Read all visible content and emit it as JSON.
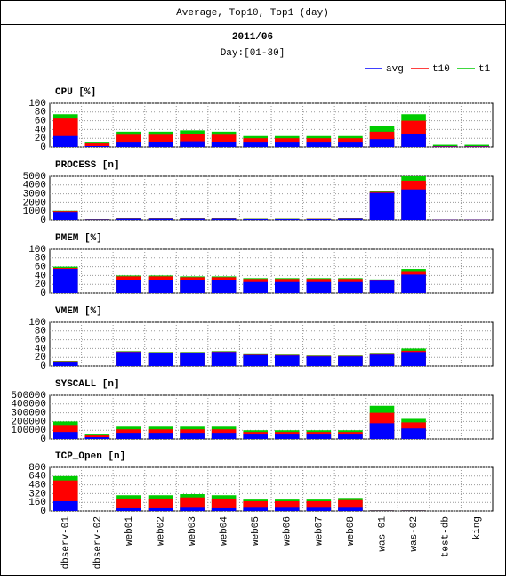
{
  "header": {
    "title": "Average, Top10, Top1 (day)",
    "date": "2011/06",
    "range": "Day:[01-30]"
  },
  "legend": [
    {
      "name": "avg",
      "color": "#0000ff"
    },
    {
      "name": "t10",
      "color": "#ff0000"
    },
    {
      "name": "t1",
      "color": "#00cc00"
    }
  ],
  "categories": [
    "dbserv-01",
    "dbserv-02",
    "web01",
    "web02",
    "web03",
    "web04",
    "web05",
    "web06",
    "web07",
    "web08",
    "was-01",
    "was-02",
    "test-db",
    "king"
  ],
  "chart_data": [
    {
      "type": "bar",
      "title": "CPU [%]",
      "ylim": [
        0,
        100
      ],
      "yticks": [
        0,
        20,
        40,
        60,
        80,
        100
      ],
      "grid": true,
      "series": [
        {
          "values": [
            25,
            2,
            10,
            12,
            13,
            12,
            10,
            10,
            10,
            10,
            18,
            30,
            1,
            1
          ]
        },
        {
          "values": [
            65,
            8,
            28,
            28,
            30,
            28,
            20,
            20,
            20,
            20,
            35,
            60,
            2,
            2
          ]
        },
        {
          "values": [
            75,
            10,
            35,
            35,
            38,
            35,
            25,
            25,
            25,
            25,
            48,
            75,
            5,
            5
          ]
        }
      ]
    },
    {
      "type": "bar",
      "title": "PROCESS [n]",
      "ylim": [
        0,
        5000
      ],
      "yticks": [
        0,
        1000,
        2000,
        3000,
        4000,
        5000
      ],
      "grid": true,
      "series": [
        {
          "values": [
            900,
            50,
            150,
            150,
            150,
            150,
            100,
            100,
            100,
            150,
            3100,
            3500,
            30,
            30
          ]
        },
        {
          "values": [
            1000,
            80,
            180,
            180,
            180,
            180,
            120,
            120,
            130,
            180,
            3200,
            4500,
            50,
            50
          ]
        },
        {
          "values": [
            1050,
            100,
            200,
            200,
            200,
            200,
            150,
            150,
            150,
            200,
            3300,
            5000,
            60,
            60
          ]
        }
      ]
    },
    {
      "type": "bar",
      "title": "PMEM [%]",
      "ylim": [
        0,
        100
      ],
      "yticks": [
        0,
        20,
        40,
        60,
        80,
        100
      ],
      "grid": true,
      "series": [
        {
          "values": [
            55,
            0,
            30,
            30,
            30,
            30,
            25,
            25,
            25,
            25,
            28,
            42,
            0,
            0
          ]
        },
        {
          "values": [
            57,
            0,
            38,
            38,
            36,
            36,
            32,
            32,
            32,
            32,
            30,
            50,
            0,
            0
          ]
        },
        {
          "values": [
            60,
            0,
            40,
            40,
            38,
            38,
            34,
            34,
            34,
            34,
            31,
            55,
            0,
            0
          ]
        }
      ]
    },
    {
      "type": "bar",
      "title": "VMEM [%]",
      "ylim": [
        0,
        100
      ],
      "yticks": [
        0,
        20,
        40,
        60,
        80,
        100
      ],
      "grid": true,
      "series": [
        {
          "values": [
            8,
            0,
            32,
            30,
            30,
            32,
            25,
            24,
            22,
            22,
            26,
            32,
            0,
            0
          ]
        },
        {
          "values": [
            9,
            0,
            33,
            31,
            31,
            33,
            26,
            25,
            23,
            23,
            27,
            35,
            0,
            0
          ]
        },
        {
          "values": [
            10,
            0,
            34,
            32,
            32,
            34,
            27,
            26,
            24,
            24,
            28,
            40,
            0,
            0
          ]
        }
      ]
    },
    {
      "type": "bar",
      "title": "SYSCALL [n]",
      "ylim": [
        0,
        500000
      ],
      "yticks": [
        0,
        100000,
        200000,
        300000,
        400000,
        500000
      ],
      "grid": true,
      "series": [
        {
          "values": [
            80000,
            20000,
            70000,
            70000,
            70000,
            70000,
            50000,
            50000,
            50000,
            50000,
            180000,
            120000,
            0,
            0
          ]
        },
        {
          "values": [
            160000,
            40000,
            110000,
            110000,
            110000,
            110000,
            80000,
            80000,
            80000,
            80000,
            300000,
            190000,
            0,
            0
          ]
        },
        {
          "values": [
            200000,
            50000,
            140000,
            140000,
            140000,
            140000,
            100000,
            100000,
            100000,
            100000,
            380000,
            230000,
            0,
            0
          ]
        }
      ]
    },
    {
      "type": "bar",
      "title": "TCP_Open [n]",
      "ylim": [
        0,
        800
      ],
      "yticks": [
        0,
        160,
        320,
        480,
        640,
        800
      ],
      "grid": true,
      "series": [
        {
          "values": [
            180,
            0,
            50,
            50,
            60,
            50,
            60,
            60,
            60,
            60,
            5,
            5,
            0,
            0
          ]
        },
        {
          "values": [
            560,
            0,
            230,
            230,
            250,
            230,
            180,
            180,
            180,
            200,
            10,
            10,
            0,
            0
          ]
        },
        {
          "values": [
            640,
            0,
            290,
            290,
            310,
            290,
            210,
            210,
            210,
            240,
            15,
            15,
            0,
            0
          ]
        }
      ]
    }
  ]
}
